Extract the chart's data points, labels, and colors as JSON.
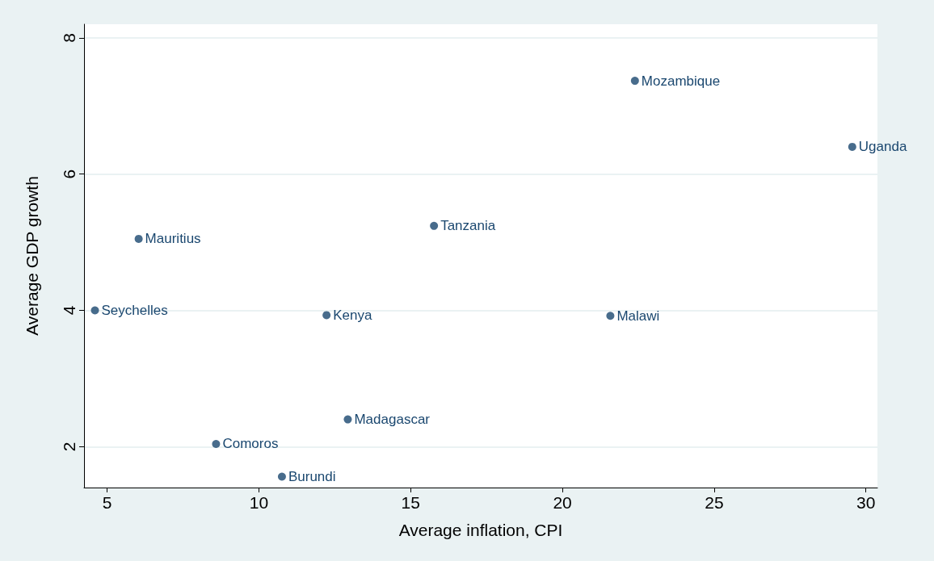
{
  "chart_data": {
    "type": "scatter",
    "xlabel": "Average inflation, CPI",
    "ylabel": "Average GDP growth",
    "x": [
      22.39,
      29.55,
      15.77,
      6.04,
      4.6,
      12.23,
      21.58,
      12.93,
      8.59,
      10.76
    ],
    "series": [
      {
        "color": "#1a476f",
        "values": [
          7.37,
          6.4,
          5.24,
          5.05,
          4.0,
          3.93,
          3.92,
          2.4,
          2.04,
          1.56
        ]
      }
    ],
    "annotations": [
      {
        "text": "Mozambique",
        "x": 22.39,
        "y": 7.37
      },
      {
        "text": "Uganda",
        "x": 29.55,
        "y": 6.4
      },
      {
        "text": "Tanzania",
        "x": 15.77,
        "y": 5.24
      },
      {
        "text": "Mauritius",
        "x": 6.04,
        "y": 5.05
      },
      {
        "text": "Seychelles",
        "x": 4.6,
        "y": 4.0
      },
      {
        "text": "Kenya",
        "x": 12.23,
        "y": 3.93
      },
      {
        "text": "Malawi",
        "x": 21.58,
        "y": 3.92
      },
      {
        "text": "Madagascar",
        "x": 12.93,
        "y": 2.4
      },
      {
        "text": "Comoros",
        "x": 8.59,
        "y": 2.04
      },
      {
        "text": "Burundi",
        "x": 10.76,
        "y": 1.56
      }
    ],
    "xlim": [
      4.24,
      30.38
    ],
    "xticks": [
      5,
      10,
      15,
      20,
      25,
      30
    ],
    "ylim": [
      1.4,
      8.2
    ],
    "yticks": [
      2,
      4,
      6,
      8
    ],
    "grid": "y",
    "marker": "circle"
  }
}
